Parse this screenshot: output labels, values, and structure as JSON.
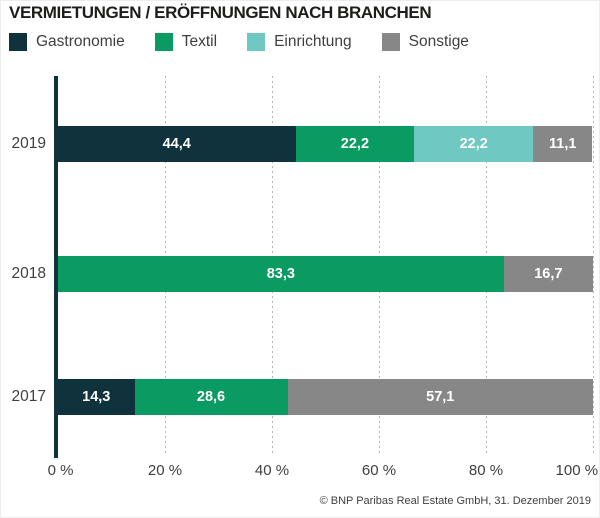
{
  "title": "VERMIETUNGEN / ERÖFFNUNGEN NACH BRANCHEN",
  "source_note": "© BNP Paribas Real Estate GmbH, 31. Dezember 2019",
  "colors": {
    "gastronomie": "#0f323d",
    "textil": "#0a9b62",
    "einrichtung": "#6fc8c1",
    "sonstige": "#878787",
    "axis": "#0f323d",
    "gridline": "#b4b4b4",
    "text": "#3f3f3e",
    "title_text": "#1d1d1b",
    "value_label_text": "#ffffff"
  },
  "chart_data": {
    "type": "bar",
    "orientation": "horizontal",
    "stacked": true,
    "title": "VERMIETUNGEN / ERÖFFNUNGEN NACH BRANCHEN",
    "categories": [
      "2019",
      "2018",
      "2017"
    ],
    "series": [
      {
        "name": "Gastronomie",
        "color": "#0f323d",
        "values": [
          44.4,
          0,
          14.3
        ]
      },
      {
        "name": "Textil",
        "color": "#0a9b62",
        "values": [
          22.2,
          83.3,
          28.6
        ]
      },
      {
        "name": "Einrichtung",
        "color": "#6fc8c1",
        "values": [
          22.2,
          0,
          0
        ]
      },
      {
        "name": "Sonstige",
        "color": "#878787",
        "values": [
          11.1,
          16.7,
          57.1
        ]
      }
    ],
    "rows": [
      {
        "category": "2019",
        "segments": [
          {
            "series": "Gastronomie",
            "value": 44.4,
            "label": "44,4"
          },
          {
            "series": "Textil",
            "value": 22.2,
            "label": "22,2"
          },
          {
            "series": "Einrichtung",
            "value": 22.2,
            "label": "22,2"
          },
          {
            "series": "Sonstige",
            "value": 11.1,
            "label": "11,1"
          }
        ]
      },
      {
        "category": "2018",
        "segments": [
          {
            "series": "Textil",
            "value": 83.3,
            "label": "83,3"
          },
          {
            "series": "Sonstige",
            "value": 16.7,
            "label": "16,7"
          }
        ]
      },
      {
        "category": "2017",
        "segments": [
          {
            "series": "Gastronomie",
            "value": 14.3,
            "label": "14,3"
          },
          {
            "series": "Textil",
            "value": 28.6,
            "label": "28,6"
          },
          {
            "series": "Sonstige",
            "value": 57.1,
            "label": "57,1"
          }
        ]
      }
    ],
    "xlim": [
      0,
      100
    ],
    "x_ticks": [
      "0 %",
      "20 %",
      "40 %",
      "60 %",
      "80 %",
      "100 %"
    ],
    "x_tick_values": [
      0,
      20,
      40,
      60,
      80,
      100
    ],
    "legend": [
      "Gastronomie",
      "Textil",
      "Einrichtung",
      "Sonstige"
    ],
    "legend_position": "top",
    "grid": "vertical-dotted",
    "value_decimal_separator": ","
  }
}
